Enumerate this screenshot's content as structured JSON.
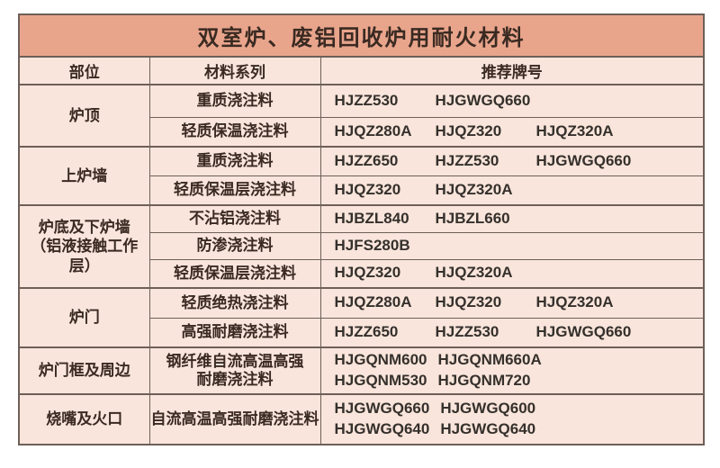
{
  "title": "双室炉、废铝回收炉用耐火材料",
  "columns": [
    "部位",
    "材料系列",
    "推荐牌号"
  ],
  "groups": [
    {
      "part": "炉顶",
      "rows": [
        {
          "series": "重质浇注料",
          "grades": [
            [
              "HJZZ530",
              "HJGWGQ660"
            ]
          ]
        },
        {
          "series": "轻质保温浇注料",
          "grades": [
            [
              "HJQZ280A",
              "HJQZ320",
              "HJQZ320A"
            ]
          ]
        }
      ]
    },
    {
      "part": "上炉墙",
      "rows": [
        {
          "series": "重质浇注料",
          "grades": [
            [
              "HJZZ650",
              "HJZZ530",
              "HJGWGQ660"
            ]
          ]
        },
        {
          "series": "轻质保温层浇注料",
          "grades": [
            [
              "HJQZ320",
              "HJQZ320A"
            ]
          ]
        }
      ]
    },
    {
      "part": "炉底及下炉墙\n（铝液接触工作层）",
      "rows": [
        {
          "series": "不沾铝浇注料",
          "grades": [
            [
              "HJBZL840",
              "HJBZL660"
            ]
          ]
        },
        {
          "series": "防渗浇注料",
          "grades": [
            [
              "HJFS280B"
            ]
          ]
        },
        {
          "series": "轻质保温层浇注料",
          "grades": [
            [
              "HJQZ320",
              "HJQZ320A"
            ]
          ]
        }
      ]
    },
    {
      "part": "炉门",
      "rows": [
        {
          "series": "轻质绝热浇注料",
          "grades": [
            [
              "HJQZ280A",
              "HJQZ320",
              "HJQZ320A"
            ]
          ]
        },
        {
          "series": "高强耐磨浇注料",
          "grades": [
            [
              "HJZZ650",
              "HJZZ530",
              "HJGWGQ660"
            ]
          ]
        }
      ]
    },
    {
      "part": "炉门框及周边",
      "rows": [
        {
          "series": "钢纤维自流高温高强\n耐磨浇注料",
          "grades": [
            [
              "HJGQNM600",
              "HJGQNM660A"
            ],
            [
              "HJGQNM530",
              "HJGQNM720"
            ]
          ]
        }
      ]
    },
    {
      "part": "烧嘴及火口",
      "rows": [
        {
          "series": "自流高温高强耐磨浇注料",
          "grades": [
            [
              "HJGWGQ660",
              "HJGWGQ600"
            ],
            [
              "HJGWGQ640",
              "HJGWGQ640"
            ]
          ]
        }
      ]
    }
  ],
  "colors": {
    "title_bg": "#e9a58c",
    "cell_bg": "#f9e5db",
    "border": "#6e5f58",
    "text": "#3a2a22",
    "grade_text": "#35302c",
    "page_bg": "#ffffff"
  }
}
